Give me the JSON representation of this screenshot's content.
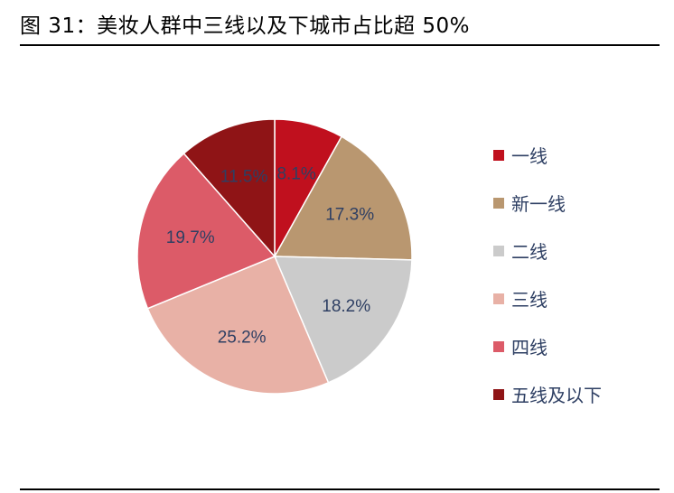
{
  "figure": {
    "title": "图 31：美妆人群中三线以及下城市占比超 50%"
  },
  "chart_data": {
    "type": "pie",
    "slices": [
      {
        "name": "一线",
        "value": 8.1,
        "label": "8.1%",
        "color": "#c0101e"
      },
      {
        "name": "新一线",
        "value": 17.3,
        "label": "17.3%",
        "color": "#b99770"
      },
      {
        "name": "二线",
        "value": 18.2,
        "label": "18.2%",
        "color": "#cbcbcb"
      },
      {
        "name": "三线",
        "value": 25.2,
        "label": "25.2%",
        "color": "#e8b1a6"
      },
      {
        "name": "四线",
        "value": 19.7,
        "label": "19.7%",
        "color": "#dc5b68"
      },
      {
        "name": "五线及以下",
        "value": 11.5,
        "label": "11.5%",
        "color": "#8f1416"
      }
    ],
    "start_angle": "12 o'clock",
    "direction": "clockwise",
    "legend_position": "right"
  }
}
